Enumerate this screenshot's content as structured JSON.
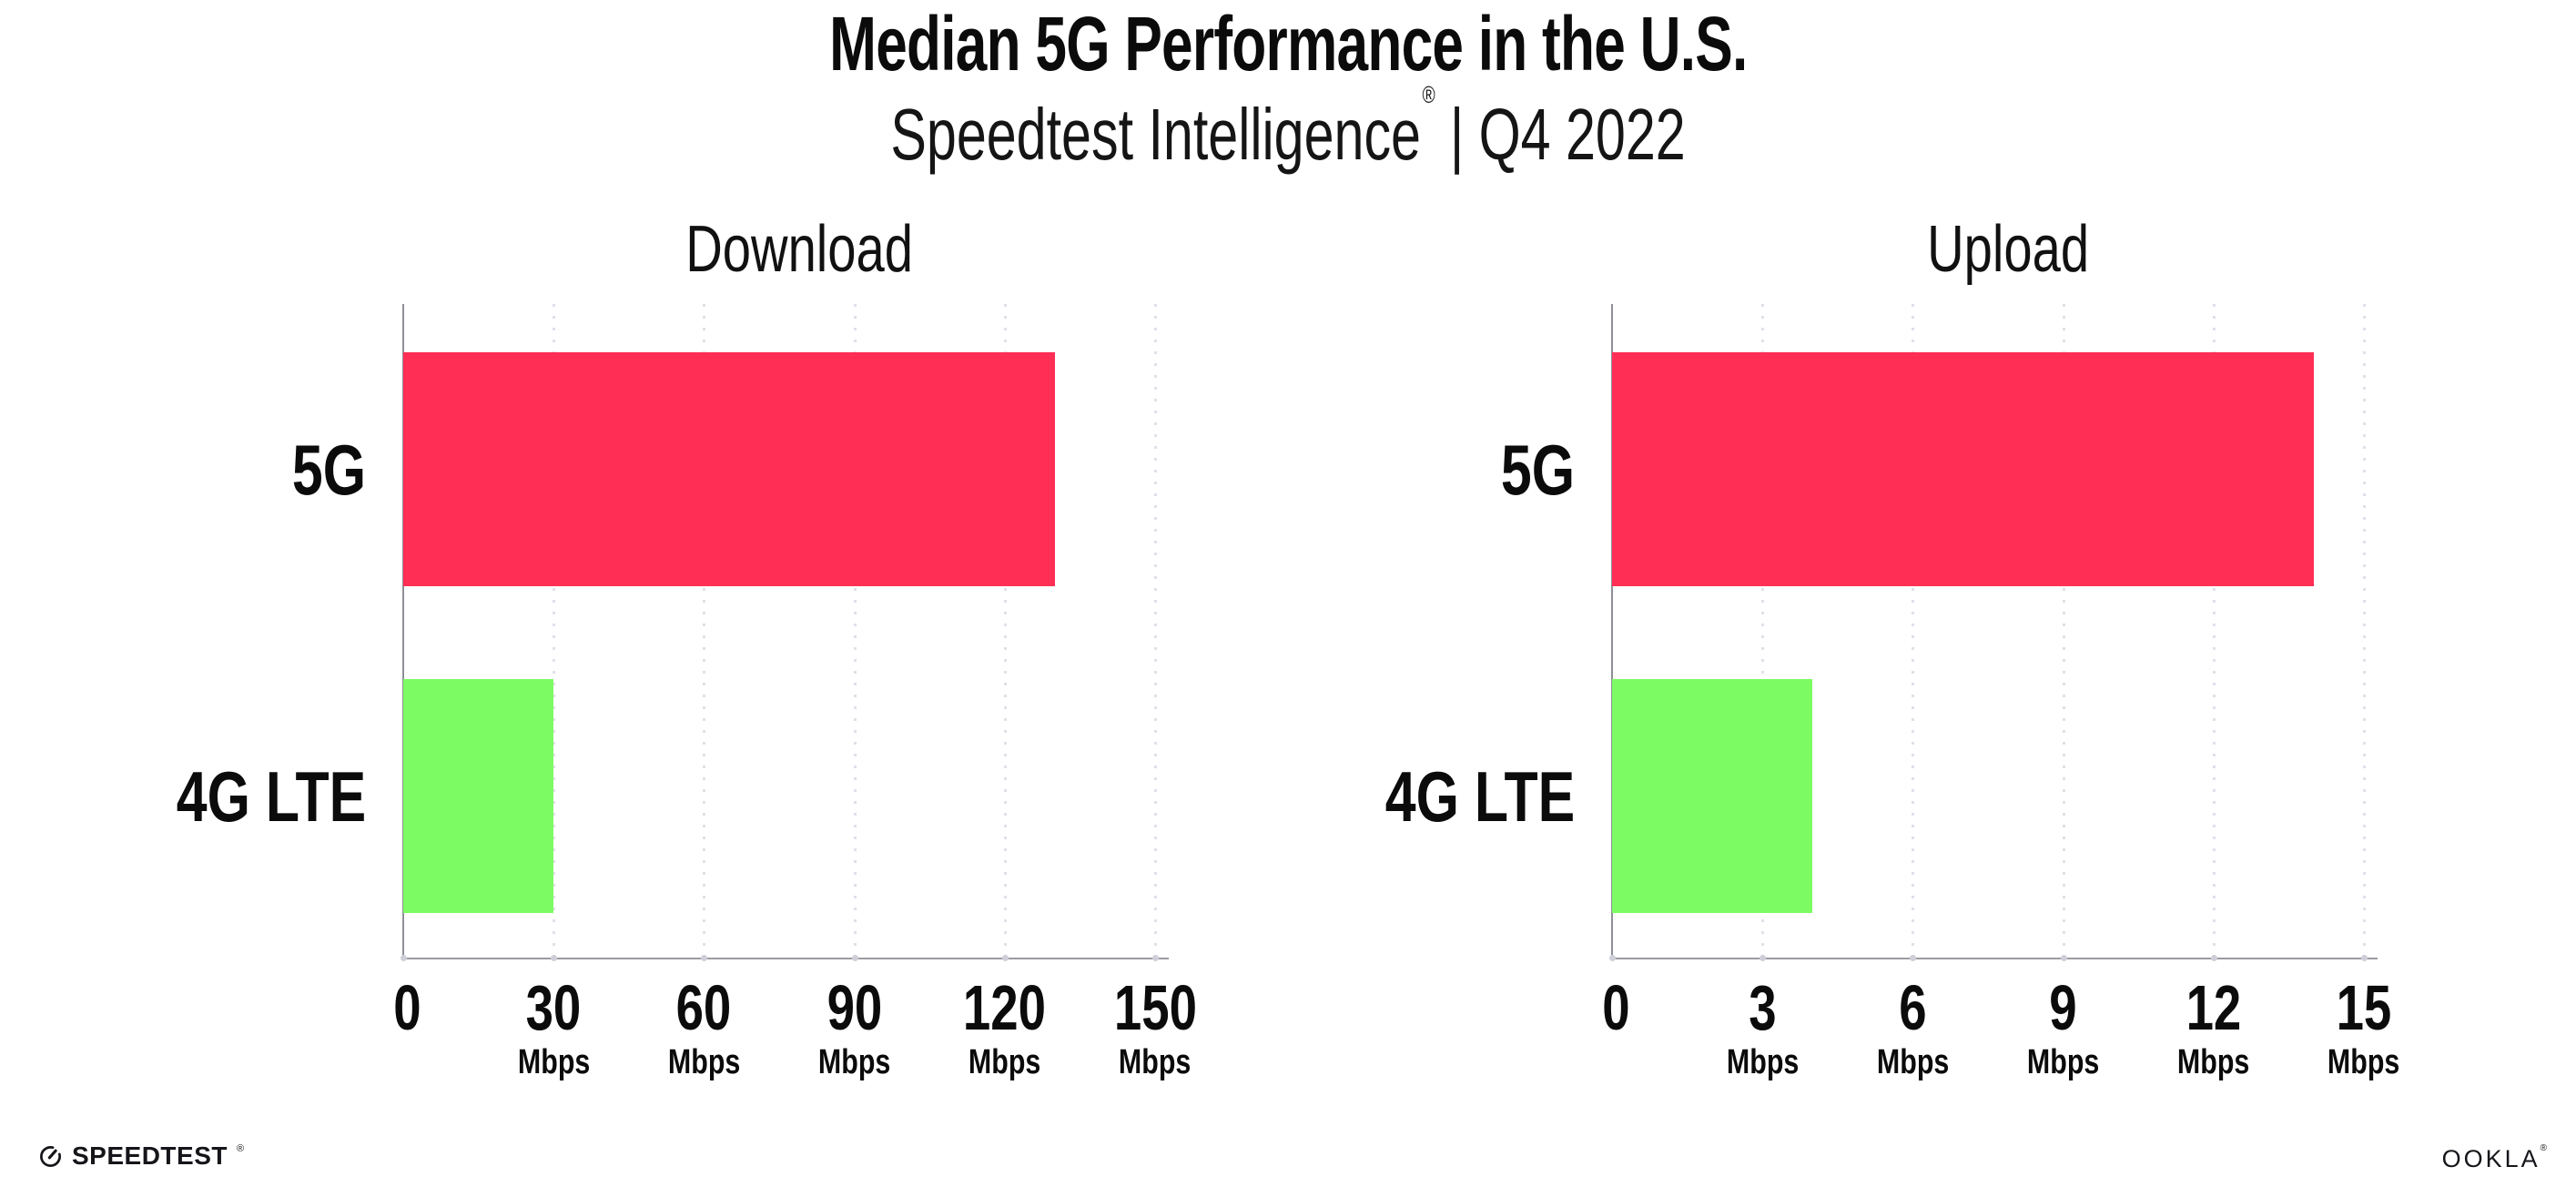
{
  "header": {
    "title": "Median 5G Performance in the U.S.",
    "subtitle": {
      "brand": "Speedtest Intelligence",
      "registered_mark": "®",
      "separator": "|",
      "period": "Q4 2022"
    }
  },
  "chart_data": [
    {
      "type": "bar",
      "orientation": "horizontal",
      "title": "Download",
      "categories": [
        "5G",
        "4G LTE"
      ],
      "values": [
        130,
        30
      ],
      "unit": "Mbps",
      "xlabel": "",
      "ylabel": "",
      "xlim": [
        0,
        150
      ],
      "xticks": [
        0,
        30,
        60,
        90,
        120,
        150
      ],
      "bar_colors": [
        "#FF2E55",
        "#7DFB63"
      ],
      "grid": "vertical-dotted",
      "legend_position": "none"
    },
    {
      "type": "bar",
      "orientation": "horizontal",
      "title": "Upload",
      "categories": [
        "5G",
        "4G LTE"
      ],
      "values": [
        14,
        4
      ],
      "unit": "Mbps",
      "xlabel": "",
      "ylabel": "",
      "xlim": [
        0,
        15
      ],
      "xticks": [
        0,
        3,
        6,
        9,
        12,
        15
      ],
      "bar_colors": [
        "#FF2E55",
        "#7DFB63"
      ],
      "grid": "vertical-dotted",
      "legend_position": "none"
    }
  ],
  "colors": {
    "bar_5g": "#FF2E55",
    "bar_4g_lte": "#7DFB63",
    "gridline": "#E0E0EA",
    "axis_line": "#9B9BA1",
    "tick_dot": "#CFCFDA",
    "background": "#FFFFFF",
    "text": "#0B0B0B"
  },
  "footer": {
    "speedtest": {
      "label": "SPEEDTEST",
      "mark": "®"
    },
    "ookla": {
      "label": "OOKLA",
      "mark": "®"
    }
  }
}
